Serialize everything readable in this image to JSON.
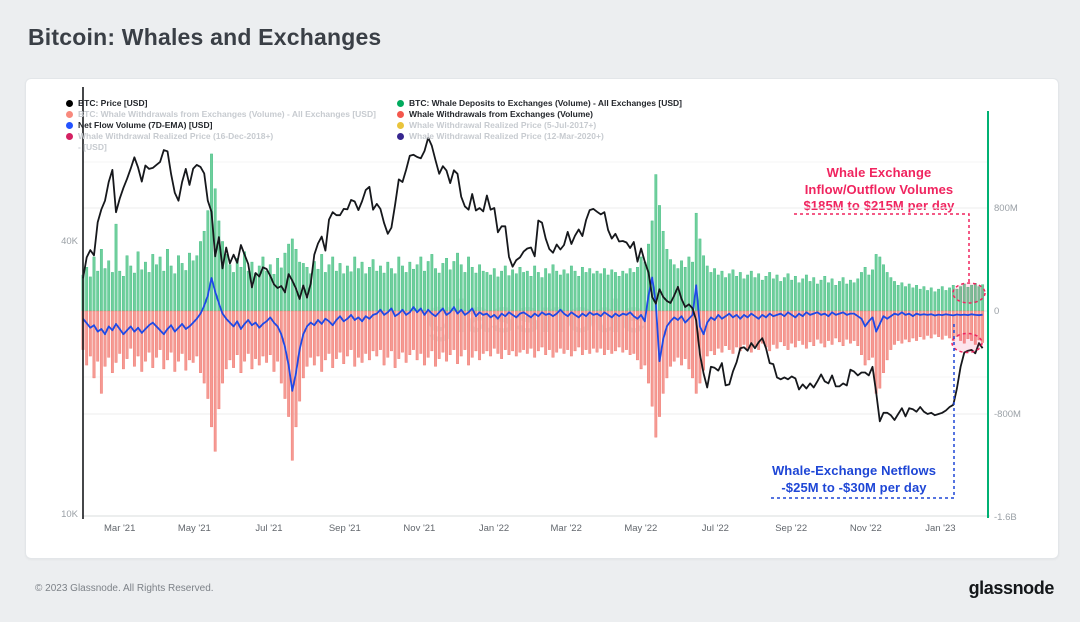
{
  "page": {
    "title": "Bitcoin: Whales and Exchanges",
    "watermark": "glassnode",
    "footer": {
      "copyright": "© 2023 Glassnode. All Rights Reserved.",
      "brand": "glassnode"
    }
  },
  "legend": {
    "columns": [
      [
        {
          "label": "BTC: Price [USD]",
          "color": "#000000",
          "active": true
        },
        {
          "label": "BTC: Whale Withdrawals from Exchanges (Volume) - All Exchanges [USD]",
          "color": "#f8897d",
          "active": false
        },
        {
          "label": "Net Flow Volume (7D-EMA) [USD]",
          "color": "#2453ff",
          "active": true
        },
        {
          "label": "Whale Withdrawal Realized Price (16-Dec-2018+)\n- [USD]",
          "color": "#d42162",
          "active": false
        }
      ],
      [
        {
          "label": "BTC: Whale Deposits to Exchanges (Volume) - All Exchanges [USD]",
          "color": "#00ab5e",
          "active": true
        },
        {
          "label": "Whale Withdrawals from Exchanges (Volume)",
          "color": "#f4574d",
          "active": true
        },
        {
          "label": "Whale Withdrawal Realized Price (5-Jul-2017+)",
          "color": "#e9c43c",
          "active": false
        },
        {
          "label": "Whale Withdrawal Realized Price (12-Mar-2020+)",
          "color": "#37278f",
          "active": false
        }
      ]
    ]
  },
  "annotations": [
    {
      "color": "#f0245f",
      "lines": [
        "Whale Exchange",
        "Inflow/Outflow Volumes",
        "$185M to $215M per day"
      ]
    },
    {
      "color": "#1e46d6",
      "lines": [
        "Whale-Exchange Netflows",
        "-$25M to -$30M per day"
      ]
    }
  ],
  "chart_data": {
    "type": "mixed",
    "sample_interval_days": 3,
    "x_ticks": [
      "Mar '21",
      "May '21",
      "Jul '21",
      "Sep '21",
      "Nov '21",
      "Jan '22",
      "Mar '22",
      "May '22",
      "Jul '22",
      "Sep '22",
      "Nov '22",
      "Jan '23"
    ],
    "left_axis": {
      "scale": "log",
      "ticks": [
        "40K",
        "10K"
      ],
      "tick_values_k": [
        40,
        10
      ]
    },
    "right_axis": {
      "ticks": [
        "800M",
        "0",
        "-800M",
        "-1.6B"
      ],
      "tick_values_m": [
        800,
        0,
        -800,
        -1600
      ]
    },
    "series": [
      {
        "name": "BTC: Whale Deposits to Exchanges (Volume) - All Exchanges [USD]",
        "type": "bar",
        "axis": "volume",
        "unit": "$M",
        "color": "#6fcf9b",
        "edge": "#41bd85",
        "values": [
          280,
          340,
          265,
          420,
          310,
          480,
          330,
          390,
          300,
          675,
          310,
          270,
          430,
          350,
          295,
          460,
          320,
          380,
          300,
          440,
          360,
          420,
          310,
          480,
          350,
          290,
          430,
          370,
          315,
          450,
          390,
          430,
          540,
          620,
          780,
          1220,
          950,
          700,
          540,
          440,
          360,
          300,
          410,
          340,
          460,
          310,
          380,
          295,
          350,
          420,
          310,
          360,
          285,
          410,
          335,
          450,
          520,
          560,
          480,
          380,
          370,
          340,
          290,
          385,
          325,
          440,
          300,
          360,
          420,
          310,
          370,
          290,
          350,
          305,
          420,
          330,
          380,
          290,
          340,
          400,
          310,
          350,
          295,
          380,
          330,
          290,
          420,
          350,
          300,
          380,
          325,
          360,
          420,
          310,
          385,
          440,
          330,
          295,
          370,
          410,
          320,
          385,
          450,
          360,
          300,
          420,
          340,
          295,
          360,
          310,
          300,
          280,
          330,
          265,
          310,
          350,
          275,
          320,
          290,
          340,
          300,
          310,
          270,
          350,
          300,
          260,
          330,
          290,
          360,
          310,
          280,
          320,
          290,
          350,
          310,
          270,
          340,
          300,
          330,
          290,
          310,
          290,
          330,
          280,
          320,
          300,
          270,
          310,
          290,
          330,
          300,
          340,
          420,
          380,
          520,
          700,
          1060,
          820,
          620,
          480,
          400,
          360,
          330,
          390,
          340,
          420,
          380,
          760,
          560,
          430,
          350,
          300,
          330,
          280,
          310,
          260,
          290,
          320,
          270,
          300,
          250,
          280,
          310,
          260,
          290,
          240,
          270,
          300,
          250,
          280,
          230,
          260,
          290,
          240,
          270,
          220,
          250,
          280,
          230,
          260,
          210,
          240,
          270,
          220,
          250,
          200,
          230,
          260,
          210,
          240,
          220,
          250,
          300,
          340,
          280,
          320,
          440,
          420,
          360,
          300,
          260,
          230,
          200,
          220,
          190,
          210,
          180,
          200,
          170,
          190,
          160,
          180,
          150,
          170,
          190,
          160,
          180,
          200,
          170,
          190,
          210,
          185,
          200,
          215,
          190,
          205
        ]
      },
      {
        "name": "Whale Withdrawals from Exchanges (Volume)",
        "type": "bar",
        "axis": "volume",
        "unit": "$M",
        "color": "#f59a93",
        "edge": "#ef756c",
        "values": [
          -300,
          -420,
          -350,
          -520,
          -390,
          -640,
          -430,
          -360,
          -480,
          -400,
          -330,
          -450,
          -370,
          -290,
          -430,
          -350,
          -470,
          -390,
          -320,
          -440,
          -360,
          -300,
          -450,
          -380,
          -320,
          -470,
          -390,
          -330,
          -460,
          -380,
          -400,
          -350,
          -480,
          -560,
          -680,
          -900,
          -1090,
          -760,
          -560,
          -450,
          -380,
          -440,
          -340,
          -480,
          -390,
          -330,
          -450,
          -370,
          -420,
          -350,
          -400,
          -340,
          -470,
          -390,
          -560,
          -680,
          -820,
          -1160,
          -900,
          -700,
          -520,
          -430,
          -360,
          -420,
          -350,
          -470,
          -380,
          -330,
          -440,
          -370,
          -320,
          -410,
          -350,
          -300,
          -430,
          -360,
          -400,
          -330,
          -380,
          -310,
          -350,
          -300,
          -420,
          -360,
          -310,
          -440,
          -370,
          -320,
          -400,
          -340,
          -300,
          -380,
          -330,
          -420,
          -360,
          -310,
          -430,
          -370,
          -320,
          -390,
          -340,
          -300,
          -410,
          -350,
          -300,
          -420,
          -360,
          -310,
          -380,
          -330,
          -310,
          -350,
          -290,
          -330,
          -370,
          -300,
          -340,
          -310,
          -350,
          -320,
          -300,
          -330,
          -290,
          -360,
          -310,
          -280,
          -340,
          -300,
          -360,
          -320,
          -290,
          -330,
          -300,
          -350,
          -310,
          -280,
          -340,
          -300,
          -330,
          -290,
          -320,
          -290,
          -340,
          -300,
          -330,
          -310,
          -280,
          -320,
          -300,
          -340,
          -330,
          -380,
          -450,
          -420,
          -560,
          -740,
          -980,
          -820,
          -640,
          -520,
          -430,
          -390,
          -360,
          -420,
          -370,
          -450,
          -520,
          -640,
          -560,
          -460,
          -350,
          -310,
          -340,
          -290,
          -320,
          -270,
          -300,
          -330,
          -280,
          -310,
          -260,
          -290,
          -320,
          -270,
          -300,
          -250,
          -280,
          -310,
          -260,
          -290,
          -240,
          -270,
          -300,
          -250,
          -280,
          -230,
          -260,
          -290,
          -240,
          -270,
          -220,
          -250,
          -280,
          -230,
          -260,
          -210,
          -240,
          -270,
          -220,
          -250,
          -230,
          -270,
          -340,
          -420,
          -380,
          -360,
          -640,
          -600,
          -480,
          -380,
          -300,
          -260,
          -230,
          -250,
          -220,
          -240,
          -210,
          -230,
          -200,
          -220,
          -190,
          -210,
          -180,
          -200,
          -220,
          -190,
          -210,
          -230,
          -200,
          -230,
          -250,
          -215,
          -230,
          -260,
          -225,
          -245
        ]
      },
      {
        "name": "Net Flow Volume (7D-EMA) [USD]",
        "type": "line",
        "axis": "volume",
        "unit": "$M",
        "color": "#1e49e6",
        "values": [
          -60,
          -95,
          -130,
          -110,
          -160,
          -140,
          -180,
          -120,
          -150,
          -100,
          -140,
          -180,
          -150,
          -120,
          -160,
          -130,
          -170,
          -140,
          -110,
          -90,
          -120,
          -150,
          -180,
          -140,
          -110,
          -160,
          -130,
          -100,
          -140,
          -120,
          -90,
          -60,
          -20,
          40,
          120,
          256,
          150,
          60,
          -20,
          -60,
          -90,
          -120,
          -80,
          -140,
          -100,
          -70,
          -110,
          -90,
          -130,
          -100,
          -80,
          -50,
          -90,
          -120,
          -180,
          -280,
          -420,
          -620,
          -480,
          -300,
          -180,
          -120,
          -90,
          -110,
          -70,
          -100,
          -60,
          -80,
          -110,
          -70,
          -40,
          -80,
          -60,
          -30,
          -70,
          -50,
          -80,
          -40,
          -60,
          -30,
          -20,
          10,
          -30,
          -10,
          20,
          -40,
          -20,
          10,
          -30,
          -10,
          30,
          -10,
          20,
          -30,
          10,
          -20,
          -40,
          -10,
          20,
          -30,
          -10,
          30,
          -20,
          10,
          -30,
          -10,
          20,
          -40,
          -10,
          -30,
          -20,
          -50,
          -30,
          -60,
          -20,
          -40,
          -10,
          -30,
          -50,
          -20,
          -10,
          -30,
          -50,
          -20,
          -40,
          -10,
          -30,
          -20,
          -40,
          -20,
          10,
          -20,
          -40,
          -10,
          -30,
          -50,
          -20,
          -40,
          -10,
          -30,
          -20,
          -40,
          -10,
          -30,
          -50,
          -20,
          -40,
          -20,
          -30,
          -10,
          -40,
          -60,
          -30,
          -80,
          120,
          260,
          60,
          -390,
          -220,
          -120,
          -80,
          -50,
          -70,
          -40,
          -90,
          -60,
          -30,
          200,
          -120,
          -180,
          -90,
          -50,
          -70,
          -30,
          -60,
          -40,
          -20,
          -50,
          -30,
          -60,
          -30,
          -50,
          -20,
          -40,
          -60,
          -30,
          -50,
          -20,
          -40,
          -30,
          -20,
          -40,
          -10,
          -30,
          -50,
          -20,
          -40,
          -10,
          -30,
          -20,
          -10,
          -30,
          -20,
          -40,
          -10,
          -30,
          -20,
          -10,
          -30,
          -20,
          -20,
          -40,
          -60,
          -120,
          -80,
          -50,
          -160,
          -100,
          -40,
          -60,
          -40,
          -20,
          -30,
          -10,
          -30,
          -20,
          -40,
          -20,
          -30,
          -25,
          -30,
          -25,
          -35,
          -28,
          -32,
          -26,
          -30,
          -34,
          -27,
          -31,
          -28,
          -32,
          -26,
          -30,
          -33,
          -29
        ]
      },
      {
        "name": "BTC: Price [USD]",
        "type": "line",
        "axis": "price",
        "unit": "$K",
        "color": "#16181c",
        "values": [
          33.1,
          36.8,
          38.2,
          37.2,
          44.0,
          47.0,
          49.1,
          54.0,
          57.4,
          46.3,
          49.6,
          52.4,
          54.9,
          57.8,
          61.2,
          58.1,
          54.1,
          58.7,
          57.7,
          58.0,
          58.9,
          59.8,
          63.5,
          63.1,
          56.2,
          51.1,
          49.1,
          54.0,
          57.7,
          53.2,
          57.8,
          58.9,
          58.3,
          56.4,
          49.1,
          46.4,
          37.0,
          40.8,
          34.8,
          38.7,
          35.7,
          37.3,
          35.8,
          39.2,
          37.3,
          35.6,
          31.6,
          34.0,
          33.4,
          35.0,
          34.7,
          33.5,
          32.1,
          31.5,
          31.8,
          30.8,
          33.8,
          32.7,
          31.4,
          29.8,
          31.9,
          30.0,
          32.2,
          37.3,
          39.5,
          40.9,
          38.1,
          44.6,
          46.3,
          45.6,
          45.6,
          47.1,
          47.0,
          49.3,
          48.9,
          46.8,
          49.0,
          51.8,
          52.7,
          46.9,
          48.3,
          47.1,
          43.8,
          41.5,
          42.8,
          48.1,
          54.7,
          54.0,
          57.4,
          61.7,
          62.0,
          61.3,
          60.9,
          63.2,
          67.6,
          64.9,
          60.3,
          56.3,
          58.5,
          57.2,
          53.7,
          57.3,
          56.3,
          50.1,
          47.7,
          46.9,
          50.8,
          46.7,
          47.3,
          46.5,
          50.4,
          46.9,
          47.3,
          41.8,
          43.1,
          43.1,
          36.9,
          35.1,
          36.3,
          36.8,
          37.9,
          38.5,
          38.7,
          37.0,
          44.4,
          43.9,
          40.5,
          38.4,
          37.7,
          39.3,
          38.3,
          39.2,
          41.9,
          39.4,
          41.1,
          42.4,
          41.0,
          44.5,
          46.8,
          47.1,
          46.4,
          45.8,
          46.3,
          42.3,
          40.5,
          41.5,
          39.9,
          40.0,
          39.7,
          38.6,
          39.8,
          36.0,
          38.5,
          36.0,
          34.1,
          30.1,
          29.1,
          31.3,
          30.1,
          29.5,
          29.2,
          30.3,
          31.7,
          29.8,
          28.6,
          29.0,
          28.4,
          26.7,
          22.5,
          20.4,
          19.0,
          21.1,
          21.0,
          20.7,
          21.5,
          19.2,
          19.3,
          20.6,
          21.6,
          23.2,
          23.3,
          22.9,
          23.8,
          23.2,
          23.9,
          24.4,
          23.2,
          21.5,
          21.4,
          20.0,
          19.8,
          20.0,
          19.8,
          20.1,
          19.9,
          18.8,
          19.3,
          18.9,
          19.4,
          19.0,
          19.6,
          20.3,
          19.6,
          19.4,
          20.2,
          19.1,
          19.1,
          19.4,
          19.2,
          20.8,
          20.6,
          20.2,
          20.5,
          20.5,
          20.2,
          21.1,
          18.5,
          16.0,
          16.7,
          16.7,
          16.5,
          16.1,
          16.6,
          17.1,
          16.4,
          17.1,
          17.0,
          16.8,
          17.2,
          16.8,
          16.6,
          16.7,
          16.5,
          16.6,
          16.7,
          16.9,
          17.2,
          17.4,
          18.9,
          21.1,
          22.7,
          22.9,
          23.0,
          22.6,
          23.8,
          23.2
        ]
      }
    ]
  }
}
